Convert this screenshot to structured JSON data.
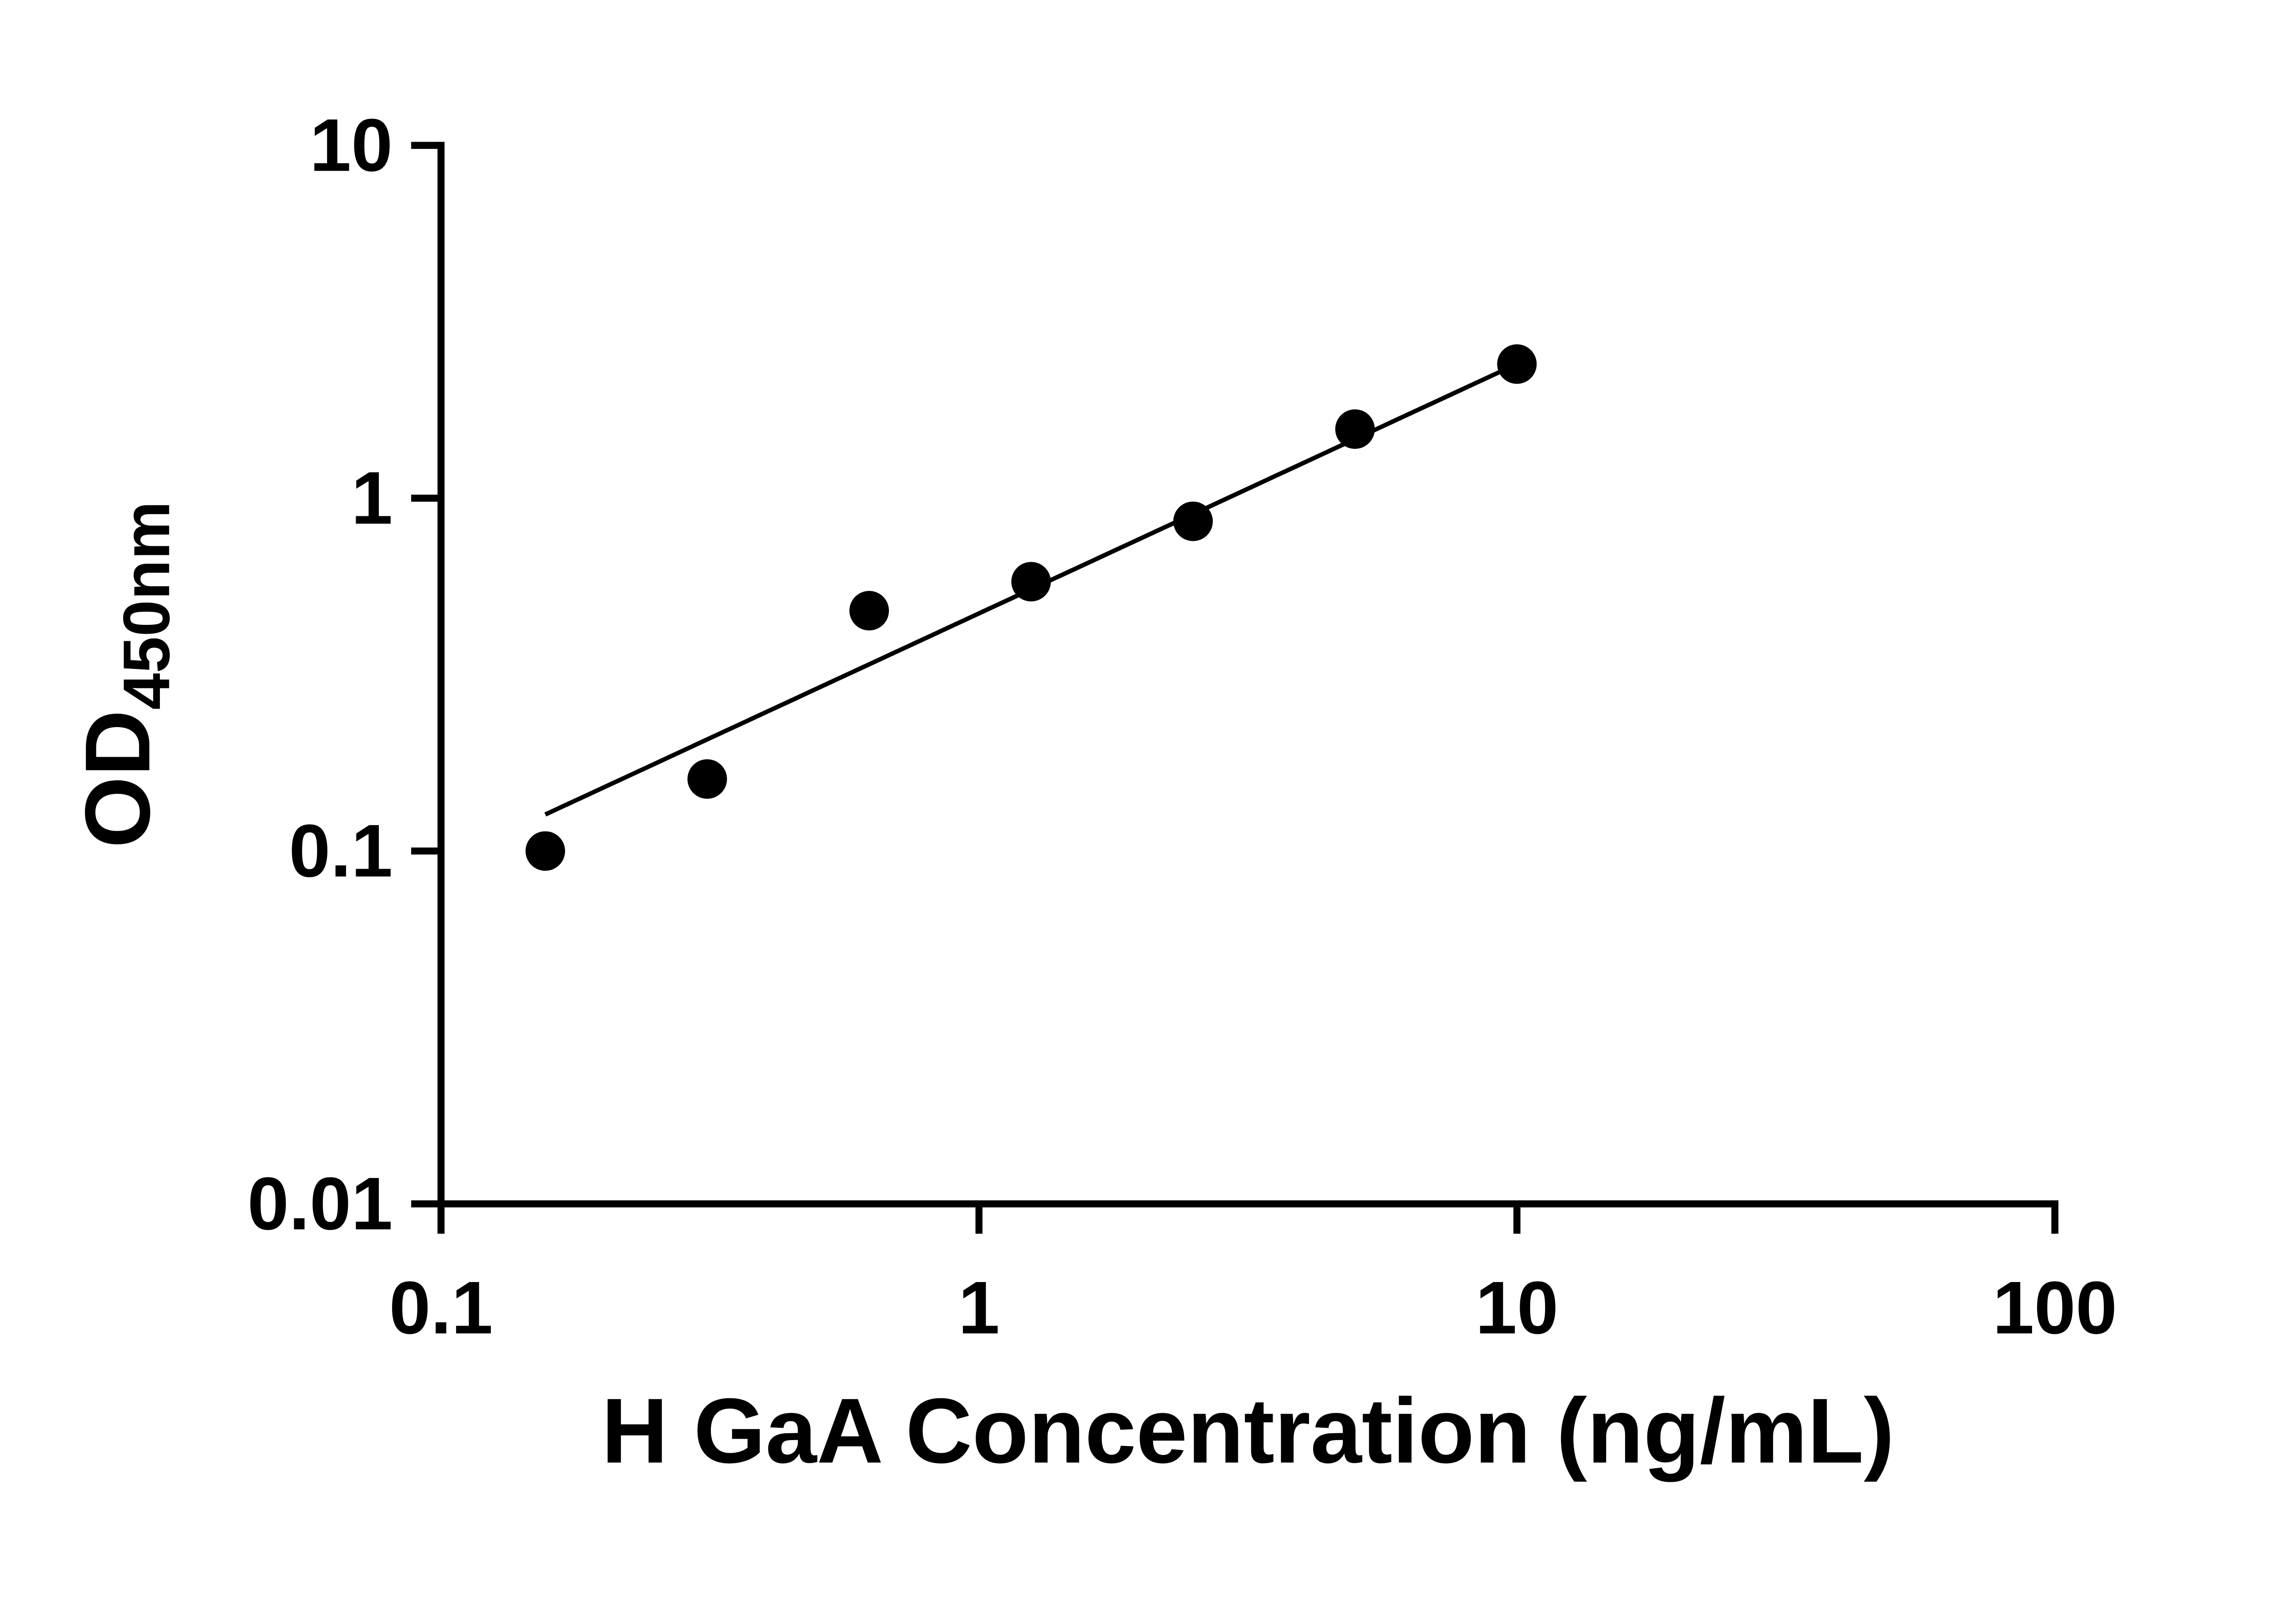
{
  "chart_data": {
    "type": "scatter",
    "title": "",
    "xlabel": "H GaA Concentration (ng/mL)",
    "ylabel": "OD",
    "ylabel_sub": "450nm",
    "x_scale": "log",
    "y_scale": "log",
    "xlim": [
      0.1,
      100
    ],
    "ylim": [
      0.01,
      10
    ],
    "x_ticks": [
      0.1,
      1,
      10,
      100
    ],
    "x_tick_labels": [
      "0.1",
      "1",
      "10",
      "100"
    ],
    "y_ticks": [
      0.01,
      0.1,
      1,
      10
    ],
    "y_tick_labels": [
      "0.01",
      "0.1",
      "1",
      "10"
    ],
    "grid": false,
    "legend": "none",
    "series": [
      {
        "name": "standard-curve-points",
        "marker": "circle",
        "color": "#000000",
        "points": [
          {
            "x": 0.15625,
            "y": 0.1
          },
          {
            "x": 0.3125,
            "y": 0.16
          },
          {
            "x": 0.625,
            "y": 0.48
          },
          {
            "x": 1.25,
            "y": 0.58
          },
          {
            "x": 2.5,
            "y": 0.86
          },
          {
            "x": 5,
            "y": 1.57
          },
          {
            "x": 10,
            "y": 2.4
          }
        ]
      }
    ],
    "trend_line": {
      "type": "power",
      "equation": "OD = 0.4715 * C^0.707",
      "a": 0.4715,
      "b": 0.707,
      "x_start": 0.15625,
      "x_end": 10,
      "color": "#000000"
    }
  },
  "colors": {
    "axis": "#000000",
    "marker": "#000000",
    "trend": "#000000",
    "background": "#ffffff"
  }
}
